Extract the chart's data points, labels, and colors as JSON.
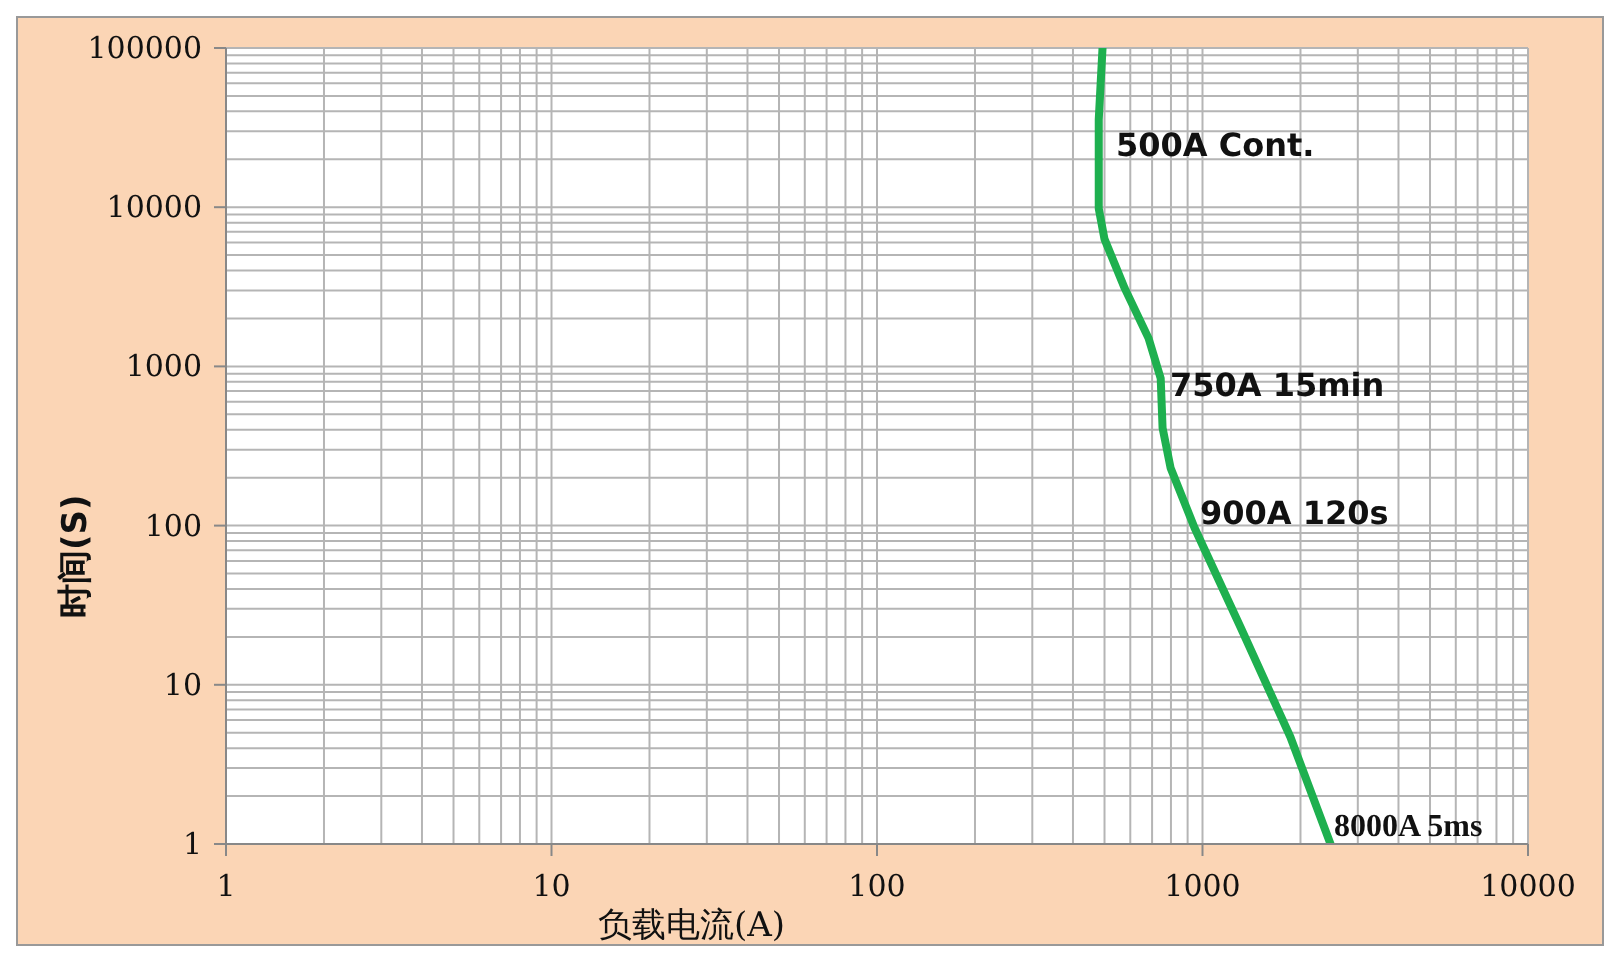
{
  "chart_data": {
    "type": "line",
    "xlabel": "负载电流(A)",
    "ylabel": "时间(S)",
    "log": "xy",
    "grid": true,
    "marker": "none",
    "line_style": "solid",
    "x": [
      493,
      480,
      480,
      500,
      577,
      683,
      744,
      754,
      798,
      945,
      1309,
      1862,
      2473
    ],
    "series": [
      {
        "color": "#1eb04f",
        "values": [
          100000,
          35500,
          9800,
          6300,
          3090,
          1500,
          840,
          410,
          230,
          97,
          23,
          4.7,
          1
        ]
      }
    ],
    "xlim": [
      1,
      10000
    ],
    "ylim": [
      1,
      100000
    ],
    "xticks": [
      1,
      {
        "value": 2,
        "label": null
      },
      {
        "value": 3,
        "label": null
      },
      {
        "value": 4,
        "label": null
      },
      {
        "value": 5,
        "label": null
      },
      {
        "value": 6,
        "label": null
      },
      {
        "value": 7,
        "label": null
      },
      {
        "value": 8,
        "label": null
      },
      {
        "value": 9,
        "label": null
      },
      10,
      {
        "value": 20,
        "label": null
      },
      {
        "value": 30,
        "label": null
      },
      {
        "value": 40,
        "label": null
      },
      {
        "value": 50,
        "label": null
      },
      {
        "value": 60,
        "label": null
      },
      {
        "value": 70,
        "label": null
      },
      {
        "value": 80,
        "label": null
      },
      {
        "value": 90,
        "label": null
      },
      100,
      {
        "value": 200,
        "label": null
      },
      {
        "value": 300,
        "label": null
      },
      {
        "value": 400,
        "label": null
      },
      {
        "value": 500,
        "label": null
      },
      {
        "value": 600,
        "label": null
      },
      {
        "value": 700,
        "label": null
      },
      {
        "value": 800,
        "label": null
      },
      {
        "value": 900,
        "label": null
      },
      1000,
      {
        "value": 2000,
        "label": null
      },
      {
        "value": 3000,
        "label": null
      },
      {
        "value": 4000,
        "label": null
      },
      {
        "value": 5000,
        "label": null
      },
      {
        "value": 6000,
        "label": null
      },
      {
        "value": 7000,
        "label": null
      },
      {
        "value": 8000,
        "label": null
      },
      {
        "value": 9000,
        "label": null
      },
      10000
    ],
    "yticks": [
      1,
      {
        "value": 2,
        "label": null
      },
      {
        "value": 3,
        "label": null
      },
      {
        "value": 4,
        "label": null
      },
      {
        "value": 5,
        "label": null
      },
      {
        "value": 6,
        "label": null
      },
      {
        "value": 7,
        "label": null
      },
      {
        "value": 8,
        "label": null
      },
      {
        "value": 9,
        "label": null
      },
      10,
      {
        "value": 20,
        "label": null
      },
      {
        "value": 30,
        "label": null
      },
      {
        "value": 40,
        "label": null
      },
      {
        "value": 50,
        "label": null
      },
      {
        "value": 60,
        "label": null
      },
      {
        "value": 70,
        "label": null
      },
      {
        "value": 80,
        "label": null
      },
      {
        "value": 90,
        "label": null
      },
      100,
      {
        "value": 200,
        "label": null
      },
      {
        "value": 300,
        "label": null
      },
      {
        "value": 400,
        "label": null
      },
      {
        "value": 500,
        "label": null
      },
      {
        "value": 600,
        "label": null
      },
      {
        "value": 700,
        "label": null
      },
      {
        "value": 800,
        "label": null
      },
      {
        "value": 900,
        "label": null
      },
      1000,
      {
        "value": 2000,
        "label": null
      },
      {
        "value": 3000,
        "label": null
      },
      {
        "value": 4000,
        "label": null
      },
      {
        "value": 5000,
        "label": null
      },
      {
        "value": 6000,
        "label": null
      },
      {
        "value": 7000,
        "label": null
      },
      {
        "value": 8000,
        "label": null
      },
      {
        "value": 9000,
        "label": null
      },
      10000,
      {
        "value": 20000,
        "label": null
      },
      {
        "value": 30000,
        "label": null
      },
      {
        "value": 40000,
        "label": null
      },
      {
        "value": 50000,
        "label": null
      },
      {
        "value": 60000,
        "label": null
      },
      {
        "value": 70000,
        "label": null
      },
      {
        "value": 80000,
        "label": null
      },
      {
        "value": 90000,
        "label": null
      },
      100000
    ],
    "annotations": [
      "500A Cont.",
      "750A 15min",
      "900A 120s",
      "8000A 5ms"
    ]
  }
}
